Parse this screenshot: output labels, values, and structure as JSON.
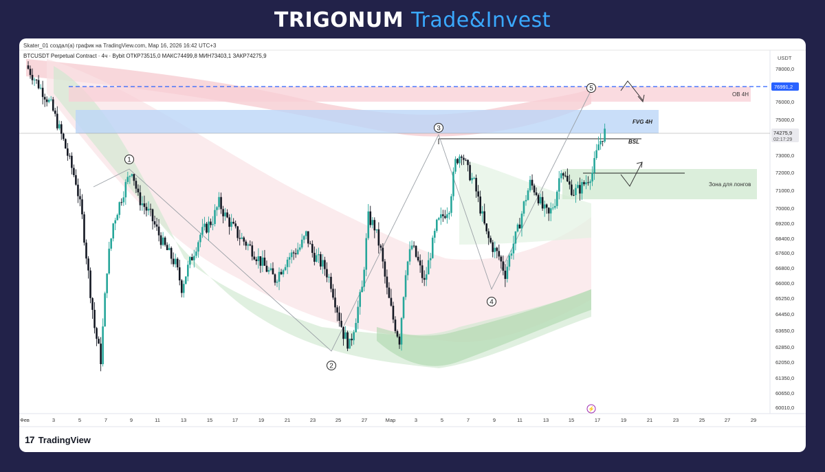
{
  "brand": {
    "name": "TRIGONUM",
    "suffix": "Trade&Invest"
  },
  "header": {
    "caption": "Skater_01 создал(а) график на TradingView.com, Мар 16, 2026 16:42 UTC+3",
    "symbol_line": "BTCUSDT Perpetual Contract · 4ч · Bybit  ОТКР73515,0  МАКС74499,8  МИН73403,1  ЗАКР74275,9"
  },
  "footer": {
    "logo": "17",
    "name": "TradingView"
  },
  "colors": {
    "up": "#26a69a",
    "down": "#131722",
    "accent": "#2962ff",
    "bg": "#ffffff"
  },
  "chart_data": {
    "type": "candlestick",
    "currency": "USDT",
    "y_ticks": [
      "78000,0",
      "76000,0",
      "75000,0",
      "73000,0",
      "72000,0",
      "71000,0",
      "70000,0",
      "69200,0",
      "68400,0",
      "67600,0",
      "66800,0",
      "66000,0",
      "65250,0",
      "64450,0",
      "63650,0",
      "62850,0",
      "62050,0",
      "61350,0",
      "60650,0",
      "60010,0"
    ],
    "x_ticks": [
      "Фев",
      "3",
      "5",
      "7",
      "9",
      "11",
      "13",
      "15",
      "17",
      "19",
      "21",
      "23",
      "25",
      "27",
      "Мар",
      "3",
      "5",
      "7",
      "9",
      "11",
      "13",
      "15",
      "17",
      "19",
      "21",
      "23",
      "25",
      "27",
      "29"
    ],
    "price_labels": {
      "level": "76991,2",
      "last": "74275,9",
      "countdown": "02:17:29"
    },
    "annotations": {
      "ob": "OB 4H",
      "fvg": "FVG 4H",
      "bsl": "BSL",
      "zone": "Зона для лонгов",
      "waves": [
        "1",
        "2",
        "3",
        "4",
        "5"
      ],
      "flash": "⚡"
    },
    "close_path": [
      [
        0,
        78200
      ],
      [
        2,
        77000
      ],
      [
        4,
        75800
      ],
      [
        6,
        73800
      ],
      [
        8,
        71500
      ],
      [
        9,
        69500
      ],
      [
        10,
        66500
      ],
      [
        11,
        63800
      ],
      [
        12,
        62200
      ],
      [
        13,
        66800
      ],
      [
        14,
        69200
      ],
      [
        16,
        71300
      ],
      [
        17,
        72200
      ],
      [
        18,
        70600
      ],
      [
        20,
        69600
      ],
      [
        22,
        68100
      ],
      [
        24,
        67000
      ],
      [
        25,
        65800
      ],
      [
        26,
        66800
      ],
      [
        28,
        68600
      ],
      [
        30,
        69400
      ],
      [
        31,
        70300
      ],
      [
        32,
        69600
      ],
      [
        34,
        68600
      ],
      [
        36,
        67900
      ],
      [
        38,
        67000
      ],
      [
        40,
        66200
      ],
      [
        42,
        67300
      ],
      [
        44,
        67900
      ],
      [
        45,
        68600
      ],
      [
        46,
        67600
      ],
      [
        48,
        66800
      ],
      [
        49,
        66000
      ],
      [
        50,
        64700
      ],
      [
        51,
        63500
      ],
      [
        52,
        62900
      ],
      [
        54,
        65700
      ],
      [
        55,
        69500
      ],
      [
        56,
        69000
      ],
      [
        57,
        67700
      ],
      [
        58,
        65600
      ],
      [
        59,
        64200
      ],
      [
        60,
        63200
      ],
      [
        61,
        66700
      ],
      [
        62,
        68000
      ],
      [
        63,
        67100
      ],
      [
        64,
        66000
      ],
      [
        65,
        67600
      ],
      [
        66,
        69100
      ],
      [
        68,
        70100
      ],
      [
        69,
        72600
      ],
      [
        70,
        73200
      ],
      [
        71,
        72100
      ],
      [
        72,
        71400
      ],
      [
        73,
        70000
      ],
      [
        74,
        68600
      ],
      [
        75,
        67900
      ],
      [
        76,
        67400
      ],
      [
        77,
        66500
      ],
      [
        78,
        67800
      ],
      [
        79,
        68800
      ],
      [
        80,
        70200
      ],
      [
        81,
        71400
      ],
      [
        82,
        70900
      ],
      [
        83,
        70000
      ],
      [
        84,
        69600
      ],
      [
        85,
        70400
      ],
      [
        86,
        72300
      ],
      [
        87,
        71400
      ],
      [
        88,
        70900
      ],
      [
        89,
        71100
      ],
      [
        90,
        71500
      ],
      [
        91,
        72000
      ],
      [
        92,
        73600
      ],
      [
        93,
        74300
      ]
    ]
  }
}
